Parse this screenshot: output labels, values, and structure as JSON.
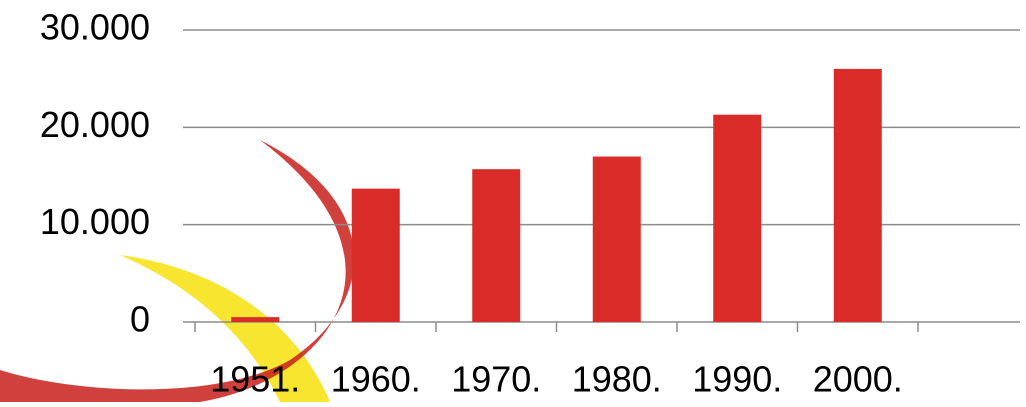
{
  "chart_data": {
    "type": "bar",
    "categories": [
      "1951.",
      "1960.",
      "1970.",
      "1980.",
      "1990.",
      "2000.",
      null
    ],
    "values": [
      500,
      13700,
      15700,
      17000,
      21300,
      26000,
      null
    ],
    "color": "#d92b27",
    "ylim": [
      0,
      30000
    ],
    "yticks": [
      0,
      {
        "value": 10000,
        "label": "10.000"
      },
      {
        "value": 20000,
        "label": "20.000"
      },
      {
        "value": 30000,
        "label": "30.000"
      }
    ],
    "grid": true
  }
}
